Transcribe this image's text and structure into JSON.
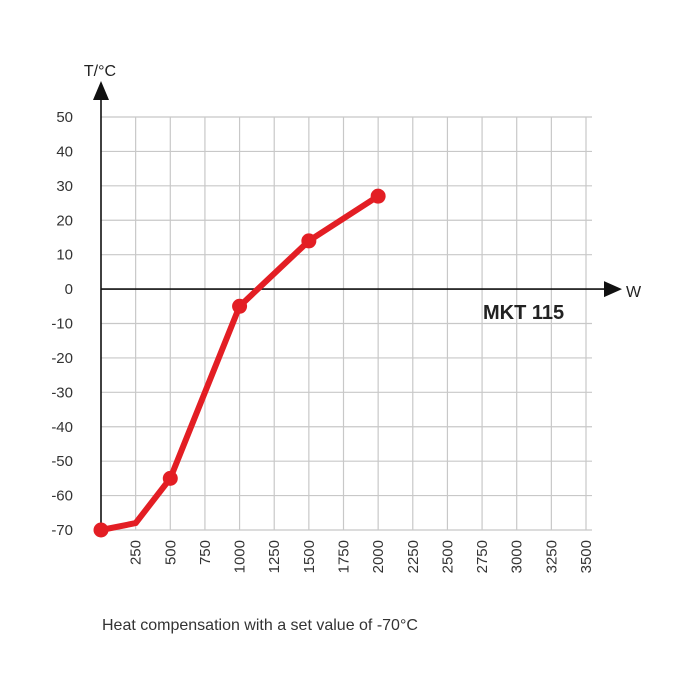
{
  "chart_data": {
    "type": "line",
    "xlabel": "W",
    "ylabel": "T/°C",
    "xlim": [
      0,
      3500
    ],
    "ylim": [
      -70,
      50
    ],
    "x_ticks": [
      250,
      500,
      750,
      1000,
      1250,
      1500,
      1750,
      2000,
      2250,
      2500,
      2750,
      3000,
      3250,
      3500
    ],
    "y_ticks": [
      50,
      40,
      30,
      20,
      10,
      0,
      -10,
      -20,
      -30,
      -40,
      -50,
      -60,
      -70
    ],
    "grid": true,
    "series": [
      {
        "name": "MKT 115",
        "color": "#e31e24",
        "x": [
          0,
          250,
          500,
          1000,
          1500,
          2000
        ],
        "y": [
          -70,
          -68,
          -55,
          -5,
          14,
          27
        ],
        "markers_x": [
          0,
          500,
          1000,
          1500,
          2000
        ],
        "markers_y": [
          -70,
          -55,
          -5,
          14,
          27
        ]
      }
    ],
    "caption": "Heat compensation with a set value of -70°C"
  },
  "colors": {
    "grid": "#c8c8c8",
    "axis": "#111111",
    "series": "#e31e24"
  }
}
